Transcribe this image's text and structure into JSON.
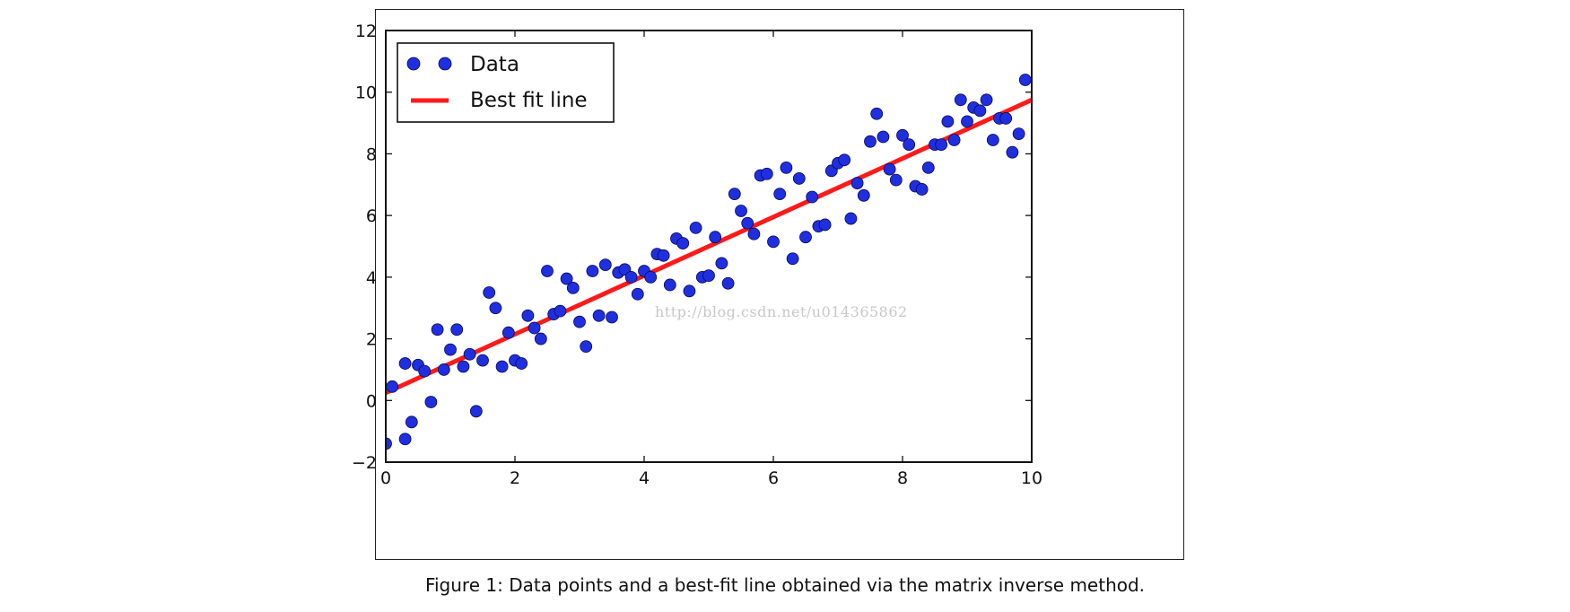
{
  "chart_data": {
    "type": "scatter",
    "xlim": [
      0,
      10
    ],
    "ylim": [
      -2,
      12
    ],
    "x_ticks": [
      0,
      2,
      4,
      6,
      8,
      10
    ],
    "y_ticks": [
      -2,
      0,
      2,
      4,
      6,
      8,
      10,
      12
    ],
    "x_tick_labels": [
      "0",
      "2",
      "4",
      "6",
      "8",
      "10"
    ],
    "y_tick_labels": [
      "−2",
      "0",
      "2",
      "4",
      "6",
      "8",
      "10",
      "12"
    ],
    "grid": false,
    "legend_position": "top-left",
    "series": [
      {
        "name": "Data",
        "kind": "points",
        "color": "#1f2fe0",
        "points": [
          [
            0.0,
            -1.4
          ],
          [
            0.1,
            0.45
          ],
          [
            0.3,
            -1.25
          ],
          [
            0.3,
            1.2
          ],
          [
            0.4,
            -0.7
          ],
          [
            0.5,
            1.15
          ],
          [
            0.6,
            0.95
          ],
          [
            0.7,
            -0.05
          ],
          [
            0.8,
            2.3
          ],
          [
            0.9,
            1.0
          ],
          [
            1.0,
            1.65
          ],
          [
            1.1,
            2.3
          ],
          [
            1.2,
            1.1
          ],
          [
            1.3,
            1.5
          ],
          [
            1.4,
            -0.35
          ],
          [
            1.5,
            1.3
          ],
          [
            1.6,
            3.5
          ],
          [
            1.7,
            3.0
          ],
          [
            1.8,
            1.1
          ],
          [
            1.9,
            2.2
          ],
          [
            2.0,
            1.3
          ],
          [
            2.1,
            1.2
          ],
          [
            2.2,
            2.75
          ],
          [
            2.3,
            2.35
          ],
          [
            2.4,
            2.0
          ],
          [
            2.5,
            4.2
          ],
          [
            2.6,
            2.8
          ],
          [
            2.7,
            2.9
          ],
          [
            2.8,
            3.95
          ],
          [
            2.9,
            3.65
          ],
          [
            3.0,
            2.55
          ],
          [
            3.1,
            1.75
          ],
          [
            3.2,
            4.2
          ],
          [
            3.3,
            2.75
          ],
          [
            3.4,
            4.4
          ],
          [
            3.5,
            2.7
          ],
          [
            3.6,
            4.15
          ],
          [
            3.7,
            4.25
          ],
          [
            3.8,
            4.0
          ],
          [
            3.9,
            3.45
          ],
          [
            4.0,
            4.2
          ],
          [
            4.1,
            4.0
          ],
          [
            4.2,
            4.75
          ],
          [
            4.3,
            4.7
          ],
          [
            4.4,
            3.75
          ],
          [
            4.5,
            5.25
          ],
          [
            4.6,
            5.1
          ],
          [
            4.7,
            3.55
          ],
          [
            4.8,
            5.6
          ],
          [
            4.9,
            4.0
          ],
          [
            5.0,
            4.05
          ],
          [
            5.1,
            5.3
          ],
          [
            5.2,
            4.45
          ],
          [
            5.3,
            3.8
          ],
          [
            5.4,
            6.7
          ],
          [
            5.5,
            6.15
          ],
          [
            5.6,
            5.75
          ],
          [
            5.7,
            5.4
          ],
          [
            5.8,
            7.3
          ],
          [
            5.9,
            7.35
          ],
          [
            6.0,
            5.15
          ],
          [
            6.1,
            6.7
          ],
          [
            6.2,
            7.55
          ],
          [
            6.3,
            4.6
          ],
          [
            6.4,
            7.2
          ],
          [
            6.5,
            5.3
          ],
          [
            6.6,
            6.6
          ],
          [
            6.7,
            5.65
          ],
          [
            6.8,
            5.7
          ],
          [
            6.9,
            7.45
          ],
          [
            7.0,
            7.7
          ],
          [
            7.1,
            7.8
          ],
          [
            7.2,
            5.9
          ],
          [
            7.3,
            7.05
          ],
          [
            7.4,
            6.65
          ],
          [
            7.5,
            8.4
          ],
          [
            7.6,
            9.3
          ],
          [
            7.7,
            8.55
          ],
          [
            7.8,
            7.5
          ],
          [
            7.9,
            7.15
          ],
          [
            8.0,
            8.6
          ],
          [
            8.1,
            8.3
          ],
          [
            8.2,
            6.95
          ],
          [
            8.3,
            6.85
          ],
          [
            8.4,
            7.55
          ],
          [
            8.5,
            8.3
          ],
          [
            8.6,
            8.3
          ],
          [
            8.7,
            9.05
          ],
          [
            8.8,
            8.45
          ],
          [
            8.9,
            9.75
          ],
          [
            9.0,
            9.05
          ],
          [
            9.1,
            9.5
          ],
          [
            9.2,
            9.4
          ],
          [
            9.3,
            9.75
          ],
          [
            9.4,
            8.45
          ],
          [
            9.5,
            9.15
          ],
          [
            9.6,
            9.15
          ],
          [
            9.7,
            8.05
          ],
          [
            9.8,
            8.65
          ],
          [
            9.9,
            10.4
          ]
        ]
      },
      {
        "name": "Best fit line",
        "kind": "line",
        "color": "#ff1a1a",
        "points": [
          [
            0,
            0.25
          ],
          [
            10,
            9.75
          ]
        ]
      }
    ],
    "caption": "Figure 1: Data points and a best-fit line obtained via the matrix inverse method.",
    "watermark": "http://blog.csdn.net/u014365862"
  }
}
